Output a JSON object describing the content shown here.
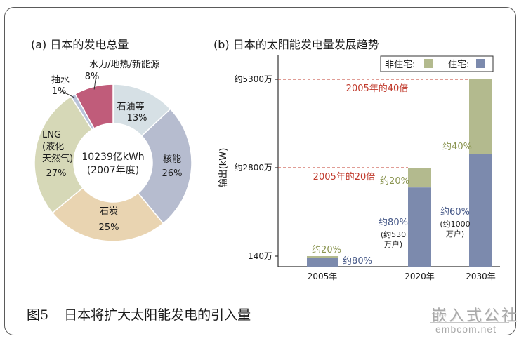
{
  "panels": {
    "a_title": "(a) 日本的发电总量",
    "b_title": "(b) 日本的太阳能发电量发展趋势"
  },
  "caption": {
    "figure_no": "图5",
    "text": "日本将扩大太阳能发电的引入量"
  },
  "watermark": {
    "cn": "嵌入式公社",
    "en": "embcom.net"
  },
  "colors": {
    "oil": "#d6e0e5",
    "nuclear": "#b6bccf",
    "coal": "#e9d4b1",
    "lng": "#d6d8b7",
    "pumped": "#b9c3d9",
    "hydro": "#c05c7a",
    "residential": "#7c8aad",
    "non_residential": "#b3ba8e",
    "ref_line": "#c0392b",
    "ref_text": "#c0392b",
    "pct_res": "#4a5c8a",
    "pct_nonres": "#8a9450"
  },
  "chart_data": [
    {
      "type": "pie",
      "donut": true,
      "title": "(a) 日本的发电总量",
      "center_label": [
        "10239亿kWh",
        "(2007年度)"
      ],
      "slices": [
        {
          "label": [
            "石油等"
          ],
          "value": 13,
          "value_label": "13%",
          "color_key": "oil"
        },
        {
          "label": [
            "核能"
          ],
          "value": 26,
          "value_label": "26%",
          "color_key": "nuclear"
        },
        {
          "label": [
            "石炭"
          ],
          "value": 25,
          "value_label": "25%",
          "color_key": "coal"
        },
        {
          "label": [
            "LNG",
            "(液化",
            "天然气)"
          ],
          "value": 27,
          "value_label": "27%",
          "color_key": "lng"
        },
        {
          "label": [
            "抽水"
          ],
          "value": 1,
          "value_label": "1%",
          "color_key": "pumped"
        },
        {
          "label": [
            "水力/地热/新能源"
          ],
          "value": 8,
          "value_label": "8%",
          "color_key": "hydro"
        }
      ]
    },
    {
      "type": "bar",
      "stacked": true,
      "title": "(b) 日本的太阳能发电量发展趋势",
      "ylabel": "输出(kW)",
      "y_ticks": [
        {
          "label": "约5300万",
          "value": 5300
        },
        {
          "label": "约2800万",
          "value": 2800
        },
        {
          "label": "140万",
          "value": 140
        }
      ],
      "unit": "万kW",
      "legend": {
        "placement": "top-right",
        "items": [
          {
            "name": "非住宅:",
            "color_key": "non_residential"
          },
          {
            "name": "住宅:",
            "color_key": "residential"
          }
        ]
      },
      "categories": [
        "2005年",
        "2020年",
        "2030年"
      ],
      "totals": [
        140,
        2800,
        5300
      ],
      "series": [
        {
          "name": "住宅",
          "share": [
            80,
            80,
            60
          ],
          "value_labels": [
            [
              "约80%"
            ],
            [
              "约80%",
              "(约530",
              "万户)"
            ],
            [
              "约60%",
              "(约1000",
              "万户)"
            ]
          ]
        },
        {
          "name": "非住宅",
          "share": [
            20,
            20,
            40
          ],
          "value_labels": [
            [
              "约20%"
            ],
            [
              "约20%"
            ],
            [
              "约40%"
            ]
          ]
        }
      ],
      "annotations": [
        {
          "text": "2005年的40倍",
          "y_value": 5300
        },
        {
          "text": "2005年的20倍",
          "y_value": 2800
        }
      ]
    }
  ]
}
